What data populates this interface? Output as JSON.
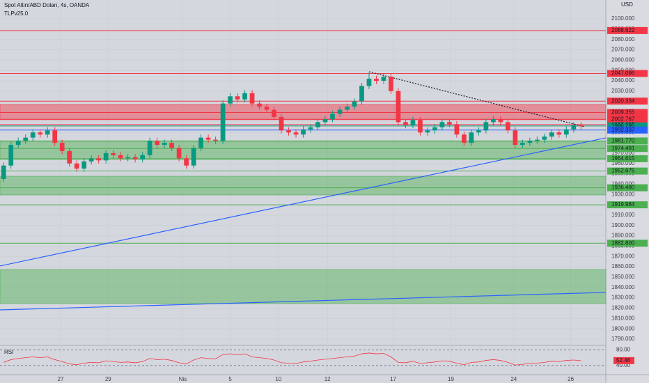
{
  "chart_data": {
    "type": "candlestick",
    "title": "Spot Altın/ABD Doları, 4s, OANDA",
    "subtitle": "TLPv25.0",
    "currency": "USD",
    "up_color": "#089981",
    "down_color": "#f23645",
    "xlim": [
      -0.5,
      82.4
    ],
    "ylim": [
      1784.6,
      2118.2
    ],
    "xticks": [
      {
        "value": 7.8,
        "label": "27"
      },
      {
        "value": 14.3,
        "label": "29"
      },
      {
        "value": 24.5,
        "label": "Nis"
      },
      {
        "value": 31,
        "label": "5"
      },
      {
        "value": 37.6,
        "label": "10"
      },
      {
        "value": 44.3,
        "label": "12"
      },
      {
        "value": 53.3,
        "label": "17"
      },
      {
        "value": 61.2,
        "label": "19"
      },
      {
        "value": 69.8,
        "label": "24"
      },
      {
        "value": 77.6,
        "label": "26"
      }
    ],
    "yticks": [
      {
        "value": 1790,
        "label": "1790.000"
      },
      {
        "value": 1800,
        "label": "1800.000"
      },
      {
        "value": 1810,
        "label": "1810.000"
      },
      {
        "value": 1820,
        "label": "1820.000"
      },
      {
        "value": 1830,
        "label": "1830.000"
      },
      {
        "value": 1840,
        "label": "1840.000"
      },
      {
        "value": 1850,
        "label": "1850.000"
      },
      {
        "value": 1860,
        "label": "1860.000"
      },
      {
        "value": 1870,
        "label": "1870.000"
      },
      {
        "value": 1880,
        "label": "1880.000"
      },
      {
        "value": 1890,
        "label": "1890.000"
      },
      {
        "value": 1900,
        "label": "1900.000"
      },
      {
        "value": 1910,
        "label": "1910.000"
      },
      {
        "value": 1920,
        "label": "1920.000"
      },
      {
        "value": 1930,
        "label": "1930.000"
      },
      {
        "value": 1940,
        "label": "1940.000"
      },
      {
        "value": 1950,
        "label": "1950.000"
      },
      {
        "value": 1960,
        "label": "1960.000"
      },
      {
        "value": 1970,
        "label": "1970.000"
      },
      {
        "value": 1980,
        "label": "1980.000"
      },
      {
        "value": 1990,
        "label": "1990.000"
      },
      {
        "value": 2000,
        "label": "2000.000"
      },
      {
        "value": 2010,
        "label": "2010.000"
      },
      {
        "value": 2020,
        "label": "2020.000"
      },
      {
        "value": 2030,
        "label": "2030.000"
      },
      {
        "value": 2040,
        "label": "2040.000"
      },
      {
        "value": 2050,
        "label": "2050.000"
      },
      {
        "value": 2060,
        "label": "2060.000"
      },
      {
        "value": 2070,
        "label": "2070.000"
      },
      {
        "value": 2080,
        "label": "2080.000"
      },
      {
        "value": 2090,
        "label": "2090.000"
      },
      {
        "value": 2100,
        "label": "2100.000"
      }
    ],
    "grid": true,
    "open": [
      1945,
      1958,
      1978,
      1982,
      1985,
      1990,
      1988,
      1992,
      1980,
      1972,
      1960,
      1955,
      1962,
      1965,
      1963,
      1970,
      1968,
      1965,
      1966,
      1964,
      1968,
      1982,
      1978,
      1980,
      1975,
      1965,
      1958,
      1975,
      1985,
      1983,
      1982,
      2018,
      2025,
      2022,
      2028,
      2018,
      2015,
      2012,
      2005,
      1992,
      1990,
      1988,
      1993,
      1995,
      2000,
      2003,
      2008,
      2012,
      2015,
      2020,
      2035,
      2042,
      2040,
      2044,
      2030,
      2000,
      1997,
      2002,
      1990,
      1992,
      1995,
      2000,
      1998,
      1988,
      1980,
      1990,
      1992,
      2000,
      2003,
      2000,
      1992,
      1978,
      1980,
      1982,
      1983,
      1986,
      1990,
      1988,
      1993,
      1997
    ],
    "high": [
      1961,
      1981,
      1985,
      1988,
      1993,
      1993,
      1995,
      1995,
      1983,
      1975,
      1963,
      1965,
      1968,
      1968,
      1973,
      1973,
      1971,
      1969,
      1969,
      1971,
      1985,
      1985,
      1983,
      1983,
      1978,
      1968,
      1978,
      1988,
      1988,
      1986,
      2021,
      2028,
      2028,
      2031,
      2031,
      2021,
      2018,
      2015,
      2008,
      1995,
      1993,
      1996,
      1998,
      2003,
      2006,
      2011,
      2015,
      2018,
      2023,
      2038,
      2048,
      2045,
      2047,
      2047,
      2033,
      2003,
      2005,
      2005,
      1995,
      1998,
      2003,
      2003,
      2001,
      1991,
      1993,
      1995,
      2003,
      2006,
      2006,
      2003,
      1995,
      1983,
      1985,
      1986,
      1989,
      1993,
      1993,
      1996,
      2000,
      2000
    ],
    "low": [
      1942,
      1955,
      1975,
      1979,
      1982,
      1985,
      1985,
      1977,
      1969,
      1957,
      1952,
      1952,
      1959,
      1960,
      1960,
      1965,
      1962,
      1962,
      1961,
      1961,
      1965,
      1975,
      1975,
      1972,
      1962,
      1955,
      1955,
      1972,
      1980,
      1979,
      1979,
      2015,
      2019,
      2019,
      2015,
      2012,
      2009,
      2002,
      1989,
      1987,
      1985,
      1985,
      1990,
      1992,
      1997,
      2000,
      2005,
      2009,
      2012,
      2017,
      2032,
      2037,
      2037,
      2027,
      1997,
      1994,
      1994,
      1987,
      1987,
      1989,
      1992,
      1995,
      1985,
      1977,
      1977,
      1987,
      1989,
      1997,
      1997,
      1989,
      1975,
      1975,
      1977,
      1979,
      1980,
      1983,
      1985,
      1985,
      1990,
      1993
    ],
    "close": [
      1958,
      1978,
      1982,
      1985,
      1990,
      1988,
      1992,
      1980,
      1972,
      1960,
      1955,
      1962,
      1965,
      1963,
      1970,
      1968,
      1965,
      1966,
      1964,
      1968,
      1982,
      1978,
      1980,
      1975,
      1965,
      1958,
      1975,
      1985,
      1983,
      1982,
      2018,
      2025,
      2022,
      2028,
      2018,
      2015,
      2012,
      2005,
      1992,
      1990,
      1988,
      1993,
      1995,
      2000,
      2003,
      2008,
      2012,
      2015,
      2020,
      2035,
      2042,
      2040,
      2044,
      2030,
      2000,
      1997,
      2002,
      1990,
      1992,
      1995,
      2000,
      1998,
      1988,
      1980,
      1990,
      1992,
      2000,
      2003,
      2000,
      1992,
      1978,
      1980,
      1982,
      1983,
      1986,
      1990,
      1988,
      1993,
      1997,
      1996
    ],
    "zones": [
      {
        "from": 2002.3,
        "to": 2017.1,
        "color": "#f23645"
      },
      {
        "from": 1963.9,
        "to": 1981.4,
        "color": "#4caf50"
      },
      {
        "from": 1929.5,
        "to": 1947.7,
        "color": "#4caf50"
      },
      {
        "from": 1824.4,
        "to": 1857.4,
        "color": "#4caf50"
      }
    ],
    "levels": [
      {
        "value": 2088.622,
        "color": "#f23645"
      },
      {
        "value": 2047.096,
        "color": "#f23645"
      },
      {
        "value": 2020.334,
        "color": "#f23645"
      },
      {
        "value": 2009.355,
        "color": "#f23645"
      },
      {
        "value": 2002.767,
        "color": "#f23645"
      },
      {
        "value": 1997.689,
        "color": "#f23645"
      },
      {
        "value": 1996.295,
        "color": "#089981"
      },
      {
        "value": 1992.337,
        "color": "#2962ff"
      },
      {
        "value": 1981.77,
        "label": "1981.770",
        "color": "#4caf50"
      },
      {
        "value": 1974.491,
        "color": "#4caf50"
      },
      {
        "value": 1964.615,
        "color": "#4caf50"
      },
      {
        "value": 1952.675,
        "color": "#4caf50"
      },
      {
        "value": 1936.48,
        "label": "1936.480",
        "color": "#4caf50"
      },
      {
        "value": 1919.984,
        "color": "#4caf50"
      },
      {
        "value": 1882.8,
        "label": "1882.800",
        "color": "#4caf50"
      }
    ],
    "trendlines": [
      {
        "x": [
          -0.5,
          82.4
        ],
        "y": [
          1860.8,
          1984.8
        ],
        "color": "#2962ff",
        "dashed": false
      },
      {
        "x": [
          -0.5,
          82.4
        ],
        "y": [
          1818.3,
          1835.2
        ],
        "color": "#2962ff",
        "dashed": false
      },
      {
        "x": [
          50,
          79.5
        ],
        "y": [
          2048.8,
          1995.5
        ],
        "color": "#131722",
        "dashed": true
      }
    ],
    "rsi": {
      "title": "RSI",
      "color": "#f23645",
      "ylim": [
        20,
        88
      ],
      "yticks": [
        {
          "value": 80,
          "label": "80.00"
        },
        {
          "value": 40,
          "label": "40.00"
        }
      ],
      "values": [
        48,
        55,
        58,
        60,
        62,
        60,
        62,
        55,
        50,
        44,
        42,
        46,
        48,
        47,
        52,
        50,
        48,
        49,
        47,
        50,
        58,
        55,
        56,
        53,
        47,
        44,
        54,
        60,
        58,
        57,
        68,
        70,
        67,
        70,
        62,
        60,
        58,
        54,
        47,
        46,
        45,
        49,
        51,
        54,
        56,
        58,
        60,
        62,
        64,
        70,
        72,
        70,
        71,
        62,
        48,
        47,
        51,
        45,
        47,
        49,
        52,
        51,
        46,
        42,
        48,
        49,
        53,
        55,
        53,
        48,
        41,
        43,
        45,
        46,
        48,
        51,
        50,
        53,
        54,
        52.48
      ]
    }
  }
}
